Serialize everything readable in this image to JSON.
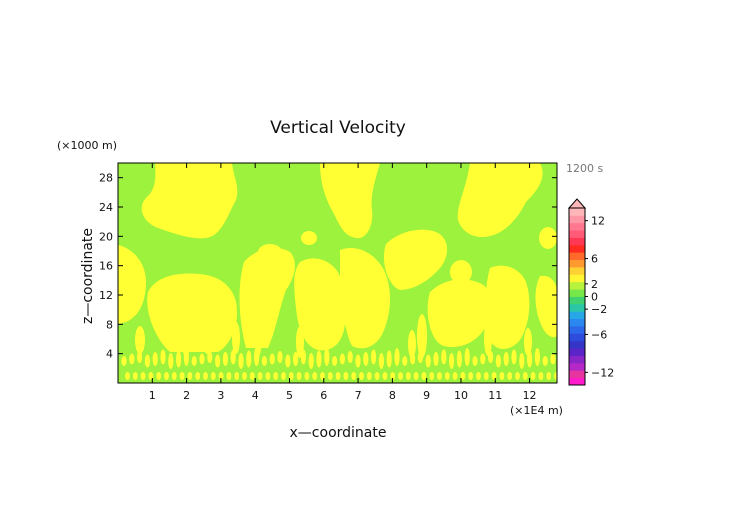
{
  "chart_data": {
    "type": "heatmap",
    "title": "Vertical Velocity",
    "xlabel": "x—coordinate",
    "ylabel": "z—coordinate",
    "x_unit": "(×1E4 m)",
    "y_unit": "(×1000 m)",
    "time_label": "1200 s",
    "xlim": [
      0,
      12.8
    ],
    "ylim": [
      0,
      30
    ],
    "x_ticks": [
      1,
      2,
      3,
      4,
      5,
      6,
      7,
      8,
      9,
      10,
      11,
      12
    ],
    "y_ticks": [
      4,
      8,
      12,
      16,
      20,
      24,
      28
    ],
    "grid": false,
    "fill_colors": {
      "weak": "#9cf23c",
      "positive": "#ffff33"
    },
    "colorbar": {
      "labels": [
        "12",
        "6",
        "2",
        "0",
        "−2",
        "−6",
        "−12"
      ],
      "levels": [
        12,
        6,
        2,
        0,
        -2,
        -6,
        -12
      ],
      "range": [
        -14,
        14
      ],
      "extend": "max",
      "colors": [
        "#ff1acc",
        "#e6359e",
        "#b428c8",
        "#8a26c8",
        "#5b24c8",
        "#3535c8",
        "#2d4cdc",
        "#2b68ea",
        "#2b88f0",
        "#26a8e6",
        "#2ac6a6",
        "#40d270",
        "#76e84a",
        "#b9f23c",
        "#fff533",
        "#ffd233",
        "#ff9a30",
        "#ff6a2a",
        "#ff2a20",
        "#ff3854",
        "#ff5a78",
        "#ff7890",
        "#ff98a6",
        "#ffb6b8"
      ]
    }
  }
}
